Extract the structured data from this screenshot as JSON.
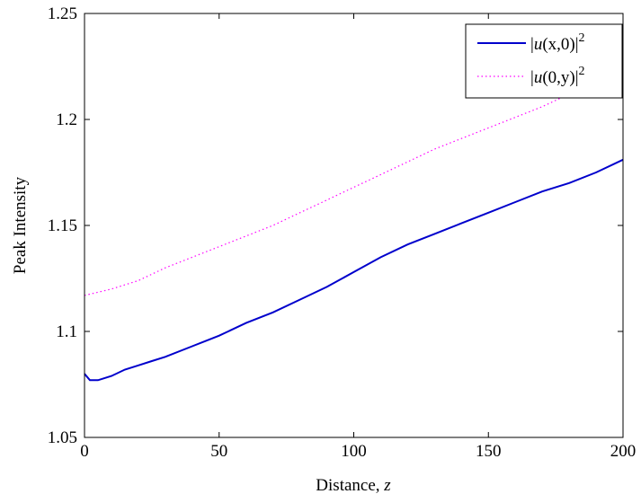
{
  "chart_data": {
    "type": "line",
    "title": "",
    "xlabel": "Distance, ",
    "xlabel_var": "z",
    "ylabel": "Peak Intensity",
    "xlim": [
      0,
      200
    ],
    "ylim": [
      1.05,
      1.25
    ],
    "xticks": [
      0,
      50,
      100,
      150,
      200
    ],
    "xtick_labels": [
      "0",
      "50",
      "100",
      "150",
      "200"
    ],
    "yticks": [
      1.05,
      1.1,
      1.15,
      1.2,
      1.25
    ],
    "ytick_labels": [
      "1.05",
      "1.1",
      "1.15",
      "1.2",
      "1.25"
    ],
    "grid": false,
    "legend_position": "top-right",
    "legend_entries": [
      {
        "prefix": "|",
        "func": "u",
        "args": "(x,0)",
        "suffix": "|",
        "power": "2"
      },
      {
        "prefix": "|",
        "func": "u",
        "args": "(0,y)",
        "suffix": "|",
        "power": "2"
      }
    ],
    "series": [
      {
        "style": "solid",
        "color": "#0000cc",
        "x": [
          0,
          2,
          5,
          10,
          15,
          20,
          25,
          30,
          40,
          50,
          60,
          70,
          80,
          90,
          100,
          110,
          120,
          130,
          140,
          150,
          160,
          170,
          180,
          190,
          200
        ],
        "y": [
          1.08,
          1.077,
          1.077,
          1.079,
          1.082,
          1.084,
          1.086,
          1.088,
          1.093,
          1.098,
          1.104,
          1.109,
          1.115,
          1.121,
          1.128,
          1.135,
          1.141,
          1.146,
          1.151,
          1.156,
          1.161,
          1.166,
          1.17,
          1.175,
          1.181
        ]
      },
      {
        "style": "dotted",
        "color": "#ff00ff",
        "x": [
          0,
          10,
          20,
          30,
          40,
          50,
          60,
          70,
          80,
          90,
          100,
          110,
          120,
          130,
          140,
          150,
          160,
          170,
          180,
          190,
          200
        ],
        "y": [
          1.117,
          1.12,
          1.124,
          1.13,
          1.135,
          1.14,
          1.145,
          1.15,
          1.156,
          1.162,
          1.168,
          1.174,
          1.18,
          1.186,
          1.191,
          1.196,
          1.201,
          1.206,
          1.212,
          1.218,
          1.225
        ]
      }
    ]
  }
}
